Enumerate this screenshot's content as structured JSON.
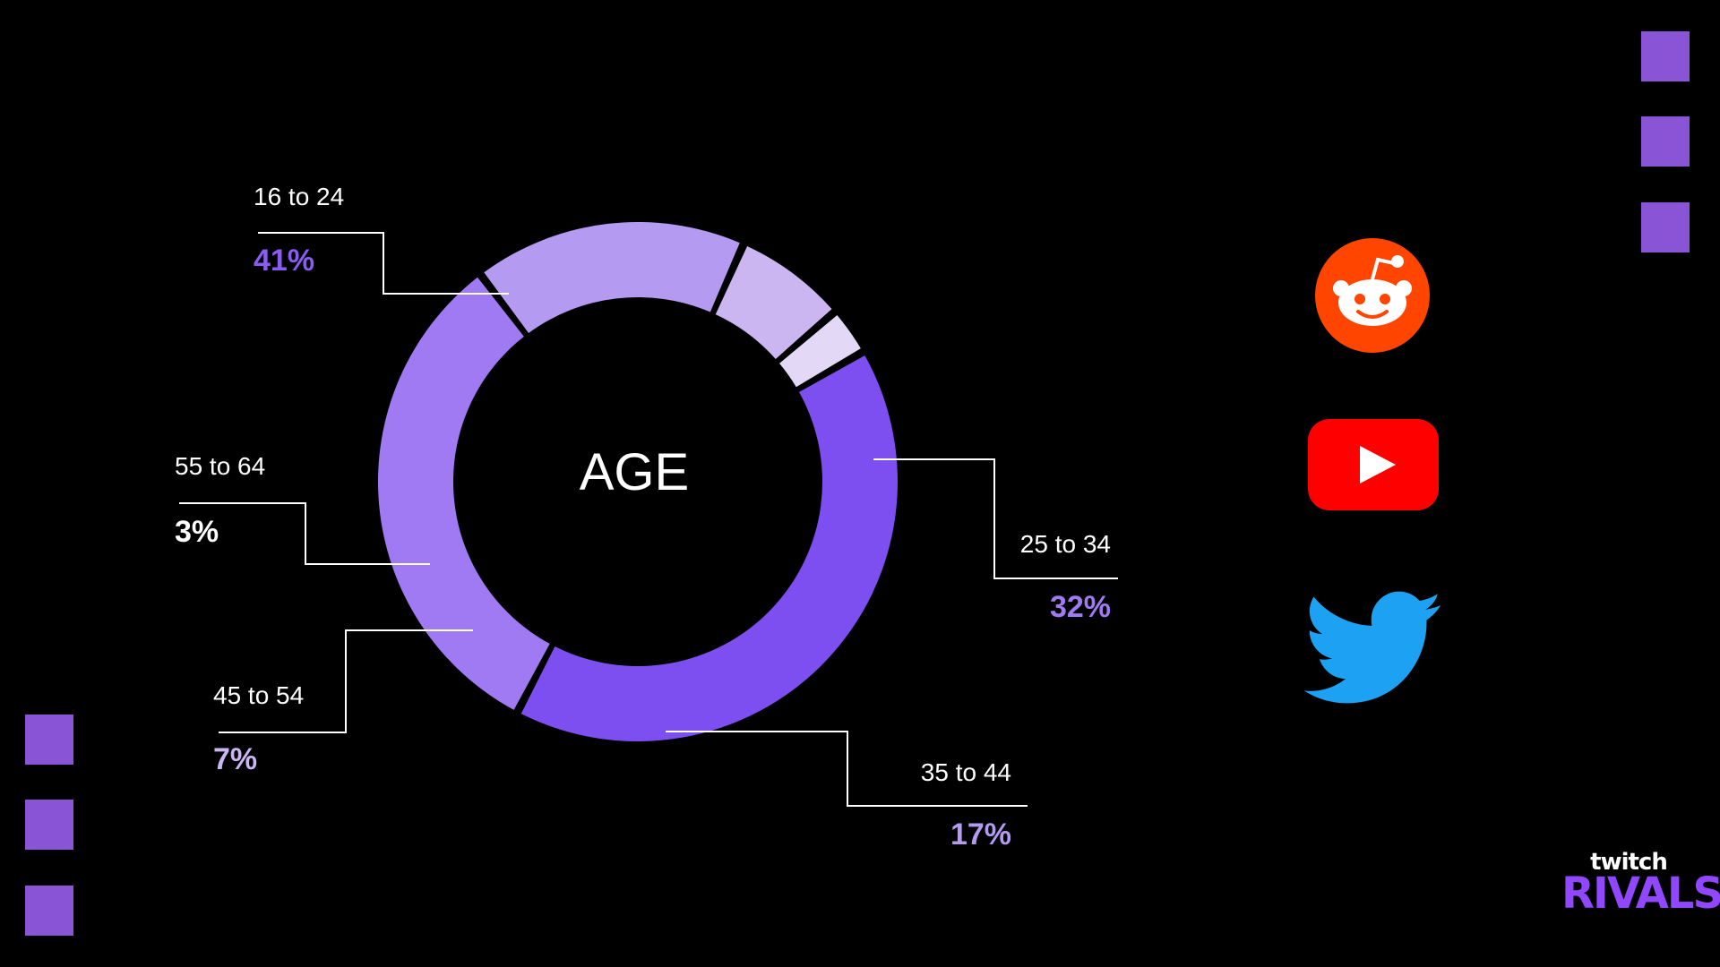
{
  "chart_data": {
    "type": "pie",
    "center_label": "AGE",
    "categories": [
      "16 to 24",
      "25 to 34",
      "35 to 44",
      "45 to 54",
      "55 to 64"
    ],
    "values": [
      41,
      32,
      17,
      7,
      3
    ],
    "value_labels": [
      "41%",
      "32%",
      "17%",
      "7%",
      "3%"
    ],
    "colors": [
      "#7e4ff0",
      "#a07af3",
      "#b49bf1",
      "#cbb6f2",
      "#e3d9f7"
    ],
    "label_colors": [
      "#8a5cf2",
      "#a07af3",
      "#b49bf1",
      "#cbb6f2",
      "#ffffff"
    ]
  },
  "decorations": {
    "square_color": "#8a54d6"
  },
  "social_icons": [
    {
      "name": "reddit-icon",
      "color": "#ff4500"
    },
    {
      "name": "youtube-icon",
      "color": "#ff0000"
    },
    {
      "name": "twitter-icon",
      "color": "#1da1f2"
    }
  ],
  "logo": {
    "top": "twitch",
    "bottom": "RIVALS"
  }
}
